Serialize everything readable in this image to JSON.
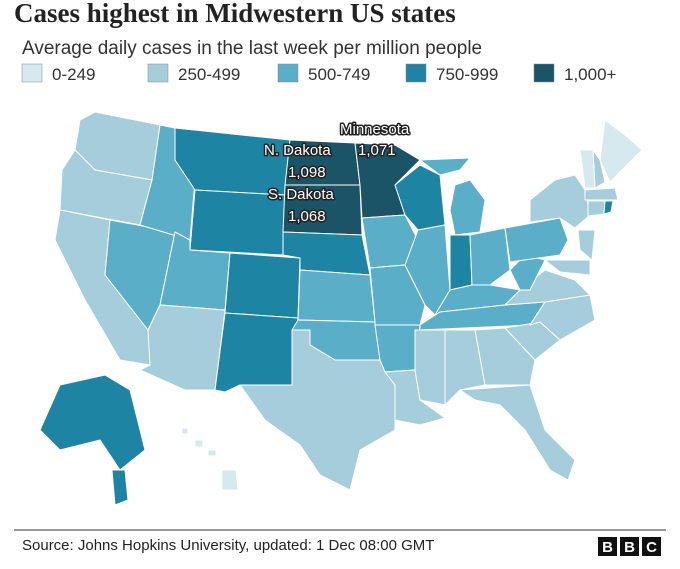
{
  "title": "Cases highest in Midwestern US states",
  "subtitle": "Average daily cases in the last week per million people",
  "legend": [
    {
      "label": "0-249",
      "color": "#d6e9ee"
    },
    {
      "label": "250-499",
      "color": "#a6cddb"
    },
    {
      "label": "500-749",
      "color": "#5baec8"
    },
    {
      "label": "750-999",
      "color": "#1e84a3"
    },
    {
      "label": "1,000+",
      "color": "#1b5467"
    }
  ],
  "annotations": [
    {
      "label": "Minnesota",
      "value": 1071,
      "value_label": "1,071"
    },
    {
      "label": "N. Dakota",
      "value": 1098,
      "value_label": "1,098"
    },
    {
      "label": "S. Dakota",
      "value": 1068,
      "value_label": "1,068"
    }
  ],
  "source": "Source: Johns Hopkins University, updated: 1 Dec 08:00 GMT",
  "logo": [
    "B",
    "B",
    "C"
  ]
}
